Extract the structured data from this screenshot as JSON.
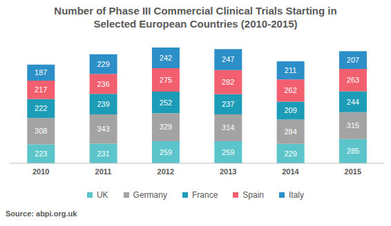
{
  "chart_data": {
    "type": "bar",
    "title": "Number of Phase III Commercial Clinical Trials Starting in\nSelected European Countries (2010-2015)",
    "categories": [
      "2010",
      "2011",
      "2012",
      "2013",
      "2014",
      "2015"
    ],
    "series": [
      {
        "name": "UK",
        "color": "#5BC5CB",
        "values": [
          223,
          231,
          259,
          259,
          229,
          285
        ]
      },
      {
        "name": "Germany",
        "color": "#A3A3A3",
        "values": [
          308,
          343,
          329,
          314,
          284,
          315
        ]
      },
      {
        "name": "France",
        "color": "#1C9CB6",
        "values": [
          222,
          239,
          252,
          237,
          209,
          244
        ]
      },
      {
        "name": "Spain",
        "color": "#F2606F",
        "values": [
          217,
          236,
          275,
          282,
          262,
          263
        ]
      },
      {
        "name": "Italy",
        "color": "#2D8FC7",
        "values": [
          187,
          229,
          242,
          247,
          211,
          207
        ]
      }
    ],
    "stacked": true,
    "data_labels": true,
    "tick_labels": "x",
    "legend": "bottom",
    "grid": false,
    "annotations": [
      "Source: abpi.org.uk"
    ]
  }
}
